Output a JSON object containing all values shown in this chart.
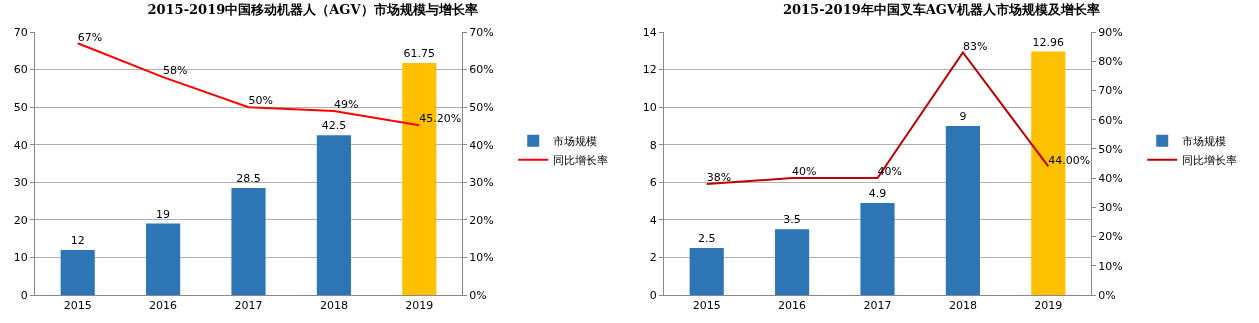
{
  "chart_data": [
    {
      "type": "bar",
      "title": "2015-2019中国移动机器人（AGV）市场规模与增长率",
      "categories": [
        "2015",
        "2016",
        "2017",
        "2018",
        "2019"
      ],
      "ylim": [
        0,
        70
      ],
      "yticks": [
        0,
        10,
        20,
        30,
        40,
        50,
        60,
        70
      ],
      "y2lim": [
        0,
        70
      ],
      "y2ticks": [
        {
          "value": 0,
          "label": "0%"
        },
        {
          "value": 10,
          "label": "10%"
        },
        {
          "value": 20,
          "label": "20%"
        },
        {
          "value": 30,
          "label": "30%"
        },
        {
          "value": 40,
          "label": "40%"
        },
        {
          "value": 50,
          "label": "50%"
        },
        {
          "value": 60,
          "label": "60%"
        },
        {
          "value": 70,
          "label": "70%"
        }
      ],
      "grid": "y",
      "legend": "right",
      "data_labels": true,
      "series": [
        {
          "name": "市场规模",
          "colors": [
            "#2e75b6",
            "#2e75b6",
            "#2e75b6",
            "#2e75b6",
            "#ffc000"
          ],
          "values": [
            12,
            19,
            28.5,
            42.5,
            61.75
          ]
        },
        {
          "name": "同比增长率",
          "type": "line",
          "axis": "y2",
          "color": "#ff0000",
          "values": [
            67,
            58,
            50,
            49,
            45.2
          ],
          "value_labels": [
            "67%",
            "58%",
            "50%",
            "49%",
            "45.20%"
          ]
        }
      ]
    },
    {
      "type": "bar",
      "title": "2015-2019年中国叉车AGV机器人市场规模及增长率",
      "categories": [
        "2015",
        "2016",
        "2017",
        "2018",
        "2019"
      ],
      "ylim": [
        0,
        14
      ],
      "yticks": [
        0,
        2,
        4,
        6,
        8,
        10,
        12,
        14
      ],
      "y2lim": [
        0,
        90
      ],
      "y2ticks": [
        {
          "value": 0,
          "label": "0%"
        },
        {
          "value": 10,
          "label": "10%"
        },
        {
          "value": 20,
          "label": "20%"
        },
        {
          "value": 30,
          "label": "30%"
        },
        {
          "value": 40,
          "label": "40%"
        },
        {
          "value": 50,
          "label": "50%"
        },
        {
          "value": 60,
          "label": "60%"
        },
        {
          "value": 70,
          "label": "70%"
        },
        {
          "value": 80,
          "label": "80%"
        },
        {
          "value": 90,
          "label": "90%"
        }
      ],
      "grid": "y",
      "legend": "right",
      "data_labels": true,
      "series": [
        {
          "name": "市场规模",
          "colors": [
            "#2e75b6",
            "#2e75b6",
            "#2e75b6",
            "#2e75b6",
            "#ffc000"
          ],
          "values": [
            2.5,
            3.5,
            4.9,
            9,
            12.96
          ]
        },
        {
          "name": "同比增长率",
          "type": "line",
          "axis": "y2",
          "color": "#c00000",
          "values": [
            38,
            40,
            40,
            83,
            44
          ],
          "value_labels": [
            "38%",
            "40%",
            "40%",
            "83%",
            "44.00%"
          ]
        }
      ]
    }
  ]
}
